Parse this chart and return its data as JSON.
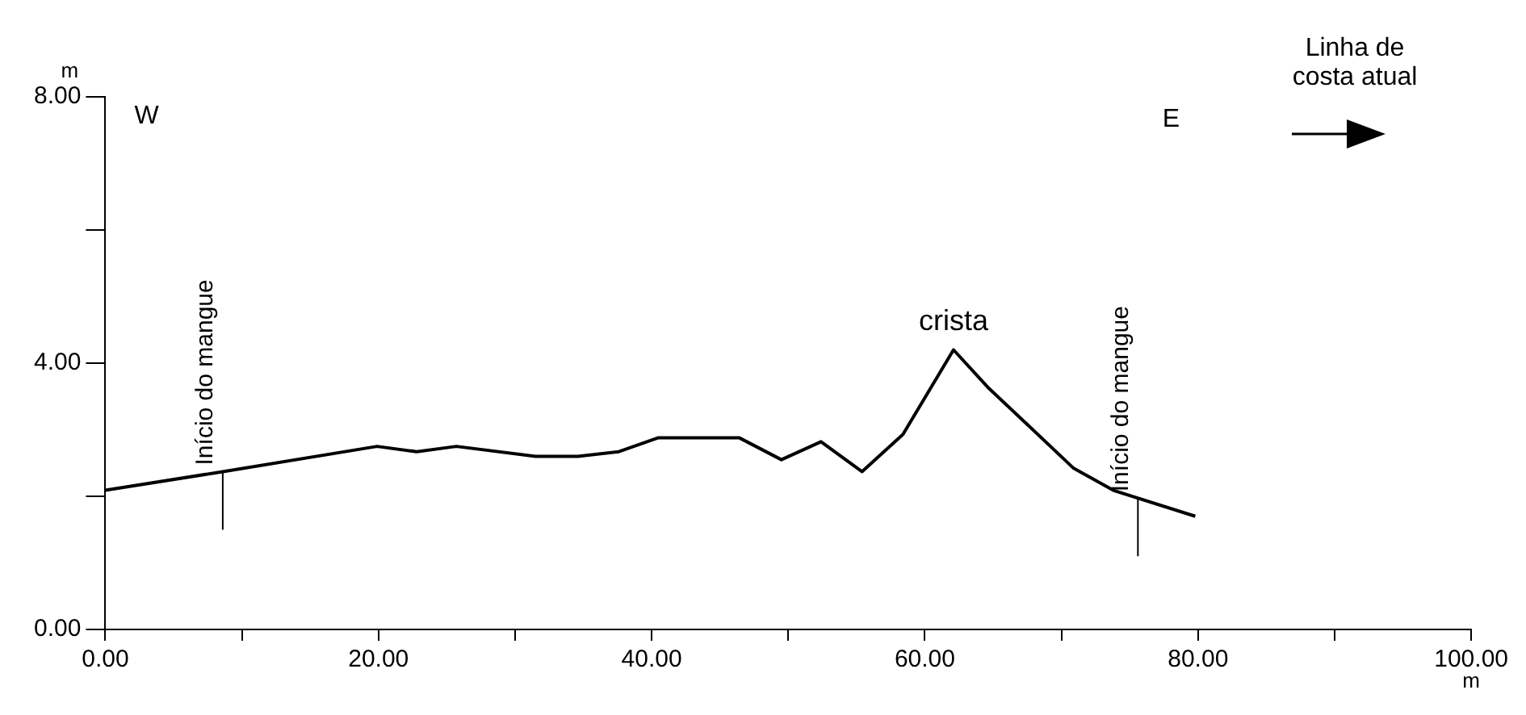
{
  "chart_data": {
    "type": "line",
    "xlabel": "m",
    "ylabel": "m",
    "x": [
      0,
      8.6,
      19.9,
      22.8,
      25.7,
      31.5,
      34.6,
      37.6,
      40.5,
      46.4,
      49.5,
      52.4,
      55.4,
      58.4,
      62.1,
      64.6,
      70.9,
      73.8,
      79.8
    ],
    "series": [
      {
        "color": "#000000",
        "values": [
          2.09,
          2.37,
          2.75,
          2.67,
          2.75,
          2.6,
          2.6,
          2.67,
          2.88,
          2.88,
          2.55,
          2.82,
          2.37,
          2.93,
          4.2,
          3.64,
          2.42,
          2.09,
          1.7
        ]
      }
    ],
    "xlim": [
      0,
      100
    ],
    "xticks": [
      {
        "value": 0,
        "label": "0.00"
      },
      {
        "value": 10,
        "label": null
      },
      {
        "value": 20,
        "label": "20.00"
      },
      {
        "value": 30,
        "label": null
      },
      {
        "value": 40,
        "label": "40.00"
      },
      {
        "value": 50,
        "label": null
      },
      {
        "value": 60,
        "label": "60.00"
      },
      {
        "value": 70,
        "label": null
      },
      {
        "value": 80,
        "label": "80.00"
      },
      {
        "value": 90,
        "label": null
      },
      {
        "value": 100,
        "label": "100.00"
      }
    ],
    "ylim": [
      0,
      8
    ],
    "yticks": [
      {
        "value": 0,
        "label": "0.00"
      },
      {
        "value": 2,
        "label": null
      },
      {
        "value": 4,
        "label": "4.00"
      },
      {
        "value": 6,
        "label": null
      },
      {
        "value": 8,
        "label": "8.00"
      }
    ],
    "grid": false,
    "legend": false,
    "marker": "none",
    "line_style": "solid",
    "ref_lines": [
      {
        "axis": "x",
        "value": 8.6,
        "label": "Início do mangue"
      },
      {
        "axis": "x",
        "value": 75.6,
        "label": "Início do mangue"
      }
    ],
    "annotations": [
      "W",
      "E",
      {
        "text": "crista",
        "x": 62.1,
        "y": 4.2
      },
      "Linha de costa atual"
    ]
  }
}
